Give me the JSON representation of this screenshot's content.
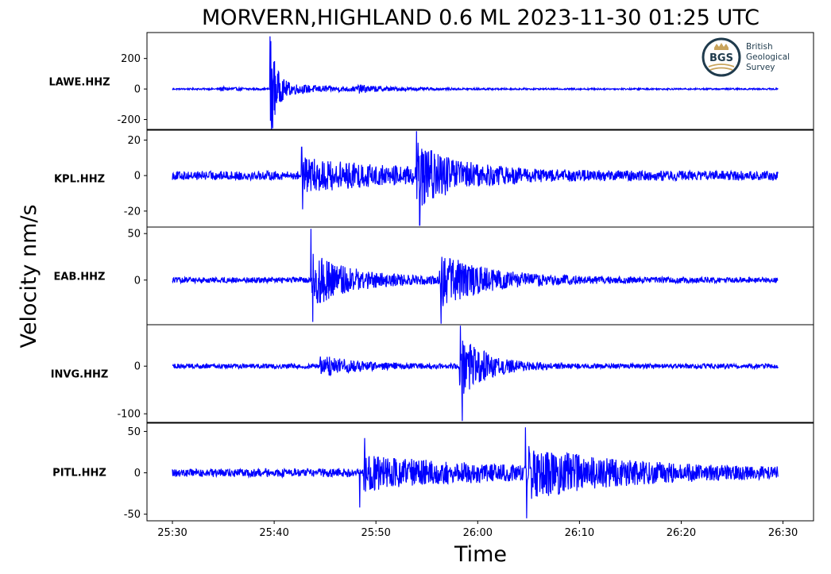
{
  "chart_data": {
    "type": "line",
    "title": "MORVERN,HIGHLAND 0.6 ML   2023-11-30 01:25 UTC",
    "xlabel": "Time",
    "ylabel": "Velocity nm/s",
    "x_tick_labels": [
      "25:30",
      "25:40",
      "25:50",
      "26:00",
      "26:10",
      "26:20",
      "26:30"
    ],
    "x_range_seconds": [
      -2.5,
      63
    ],
    "trace_range_seconds": [
      0,
      59.5
    ],
    "line_color": "#0000ff",
    "grid": false,
    "panels": [
      {
        "station": "LAWE.HHZ",
        "ylim": [
          -270,
          370
        ],
        "yticks": [
          200,
          0,
          -200
        ],
        "ytick_labels": [
          "200",
          "0",
          "-200"
        ],
        "noise": 5,
        "events": [
          {
            "t": 4.7,
            "amp": 12,
            "decay": 2.0
          },
          {
            "t": 9.6,
            "amp": 340,
            "decay": 0.55
          },
          {
            "t": 9.6,
            "amp": 40,
            "decay": 6.0
          },
          {
            "t": 18.0,
            "amp": 18,
            "decay": 2.5
          }
        ],
        "peaks": [
          [
            9.6,
            345
          ],
          [
            9.75,
            -262
          ]
        ]
      },
      {
        "station": "KPL.HHZ",
        "ylim": [
          -29,
          26
        ],
        "yticks": [
          20,
          0,
          -20
        ],
        "ytick_labels": [
          "20",
          "0",
          "-20"
        ],
        "noise": 2.5,
        "events": [
          {
            "t": 12.7,
            "amp": 8,
            "decay": 10.0
          },
          {
            "t": 24.0,
            "amp": 14,
            "decay": 4.0
          }
        ],
        "peaks": [
          [
            24.0,
            25
          ],
          [
            24.3,
            -28
          ],
          [
            12.7,
            16
          ],
          [
            12.8,
            -19
          ]
        ]
      },
      {
        "station": "EAB.HHZ",
        "ylim": [
          -48,
          57
        ],
        "yticks": [
          50,
          0
        ],
        "ytick_labels": [
          "50",
          "0"
        ],
        "noise": 3,
        "events": [
          {
            "t": 13.7,
            "amp": 28,
            "decay": 4.0
          },
          {
            "t": 26.2,
            "amp": 26,
            "decay": 5.0
          }
        ],
        "peaks": [
          [
            13.6,
            55
          ],
          [
            13.8,
            -45
          ],
          [
            26.4,
            -47
          ]
        ]
      },
      {
        "station": "INVG.HHZ",
        "ylim": [
          -118,
          87
        ],
        "yticks": [
          0,
          -100
        ],
        "ytick_labels": [
          "0",
          "-100"
        ],
        "noise": 5,
        "events": [
          {
            "t": 14.5,
            "amp": 22,
            "decay": 3.0
          },
          {
            "t": 28.2,
            "amp": 70,
            "decay": 2.5
          }
        ],
        "peaks": [
          [
            28.3,
            85
          ],
          [
            28.5,
            -115
          ]
        ]
      },
      {
        "station": "PITL.HHZ",
        "ylim": [
          -58,
          60
        ],
        "yticks": [
          50,
          0,
          -50
        ],
        "ytick_labels": [
          "50",
          "0",
          "-50"
        ],
        "noise": 5,
        "events": [
          {
            "t": 18.8,
            "amp": 18,
            "decay": 12.0
          },
          {
            "t": 34.8,
            "amp": 24,
            "decay": 10.0
          }
        ],
        "peaks": [
          [
            34.7,
            55
          ],
          [
            34.8,
            -55
          ],
          [
            18.4,
            -42
          ],
          [
            18.9,
            42
          ]
        ]
      }
    ]
  },
  "logo": {
    "abbr": "BGS",
    "lines": [
      "British",
      "Geological",
      "Survey"
    ],
    "colors": {
      "ring": "#1f3b4d",
      "gold": "#c9a45c"
    }
  }
}
